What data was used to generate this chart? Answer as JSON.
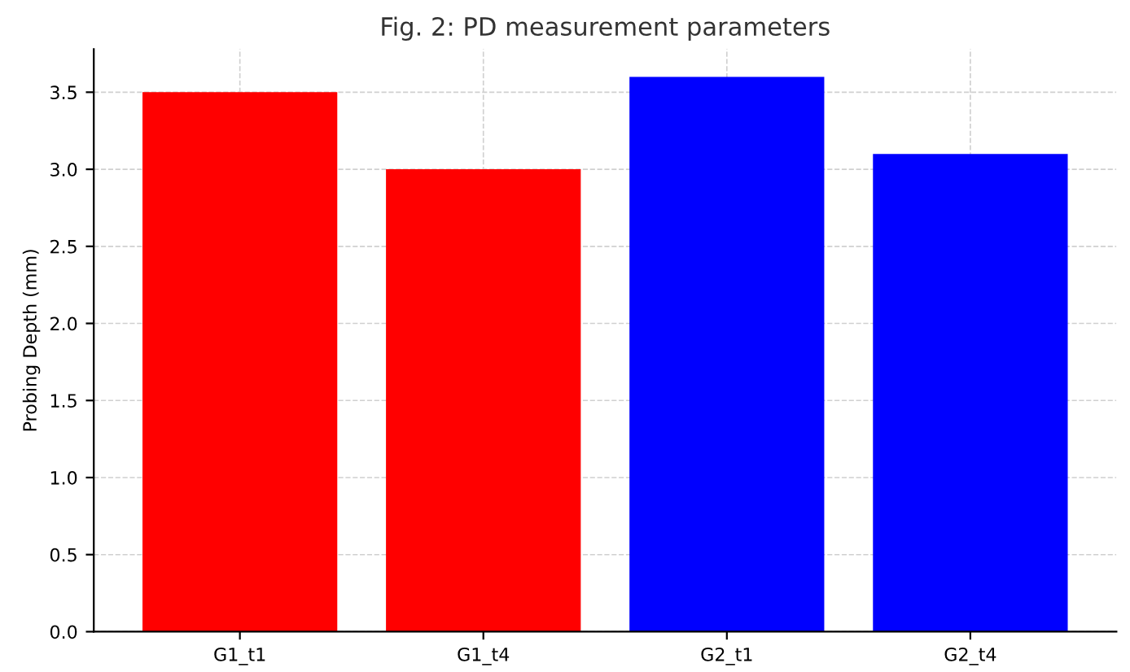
{
  "chart_data": {
    "type": "bar",
    "title": "Fig. 2: PD measurement parameters",
    "ylabel": "Probing Depth (mm)",
    "categories": [
      "G1_t1",
      "G1_t4",
      "G2_t1",
      "G2_t4"
    ],
    "values": [
      3.5,
      3.0,
      3.6,
      3.1
    ],
    "colors": [
      "#ff0000",
      "#ff0000",
      "#0000ff",
      "#0000ff"
    ],
    "ylim": [
      0,
      3.78
    ],
    "yticks": [
      {
        "value": 0,
        "label": "0.0"
      },
      {
        "value": 0.5,
        "label": "0.5"
      },
      {
        "value": 1,
        "label": "1.0"
      },
      {
        "value": 1.5,
        "label": "1.5"
      },
      {
        "value": 2,
        "label": "2.0"
      },
      {
        "value": 2.5,
        "label": "2.5"
      },
      {
        "value": 3,
        "label": "3.0"
      },
      {
        "value": 3.5,
        "label": "3.5"
      }
    ],
    "grid": true
  }
}
